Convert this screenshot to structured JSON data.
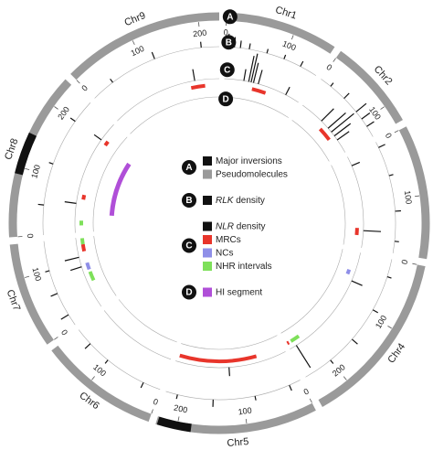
{
  "chart_data": {
    "type": "circos",
    "chromosomes": [
      {
        "name": "Chr1",
        "length": 160,
        "ticks": [
          0,
          100
        ]
      },
      {
        "name": "Chr2",
        "length": 130,
        "ticks": [
          0,
          100
        ]
      },
      {
        "name": null,
        "length": 190,
        "ticks": [
          0,
          100
        ]
      },
      {
        "name": "Chr4",
        "length": 250,
        "ticks": [
          0,
          100,
          200
        ]
      },
      {
        "name": "Chr5",
        "length": 230,
        "ticks": [
          0,
          100,
          200
        ]
      },
      {
        "name": "Chr6",
        "length": 170,
        "ticks": [
          0,
          100
        ]
      },
      {
        "name": "Chr7",
        "length": 150,
        "ticks": [
          0,
          100
        ]
      },
      {
        "name": "Chr8",
        "length": 240,
        "ticks": [
          0,
          100,
          200
        ]
      },
      {
        "name": "Chr9",
        "length": 230,
        "ticks": [
          0,
          100,
          200
        ]
      }
    ],
    "legend": [
      {
        "key": "A",
        "items": [
          {
            "label": "Major inversions",
            "color": "#111111",
            "features": [
              {
                "chr": 7,
                "start": 90,
                "end": 150
              },
              {
                "chr": 4,
                "start": 180,
                "end": 228
              }
            ]
          },
          {
            "label": "Pseudomolecules",
            "color": "#9a9a9a"
          }
        ]
      },
      {
        "key": "B",
        "items": [
          {
            "italic": "RLK",
            "label": " density",
            "color": "#111111",
            "spikes": [
              {
                "chr": 0,
                "pos": 5,
                "value": 0.9
              },
              {
                "chr": 0,
                "pos": 15,
                "value": 0.7
              },
              {
                "chr": 0,
                "pos": 25,
                "value": 0.5
              },
              {
                "chr": 0,
                "pos": 40,
                "value": 0.4
              },
              {
                "chr": 0,
                "pos": 70,
                "value": 0.3
              },
              {
                "chr": 0,
                "pos": 100,
                "value": 0.3
              },
              {
                "chr": 0,
                "pos": 130,
                "value": 0.4
              },
              {
                "chr": 1,
                "pos": 20,
                "value": 0.3
              },
              {
                "chr": 1,
                "pos": 50,
                "value": 0.5
              },
              {
                "chr": 1,
                "pos": 80,
                "value": 0.9
              },
              {
                "chr": 1,
                "pos": 95,
                "value": 0.7
              },
              {
                "chr": 1,
                "pos": 110,
                "value": 0.6
              },
              {
                "chr": 2,
                "pos": 10,
                "value": 0.5
              },
              {
                "chr": 2,
                "pos": 60,
                "value": 0.3
              },
              {
                "chr": 2,
                "pos": 120,
                "value": 0.4
              },
              {
                "chr": 2,
                "pos": 170,
                "value": 0.3
              },
              {
                "chr": 3,
                "pos": 30,
                "value": 0.3
              },
              {
                "chr": 3,
                "pos": 90,
                "value": 0.4
              },
              {
                "chr": 3,
                "pos": 150,
                "value": 0.5
              },
              {
                "chr": 3,
                "pos": 200,
                "value": 0.3
              },
              {
                "chr": 4,
                "pos": 20,
                "value": 0.4
              },
              {
                "chr": 4,
                "pos": 80,
                "value": 0.3
              },
              {
                "chr": 4,
                "pos": 150,
                "value": 0.5
              },
              {
                "chr": 4,
                "pos": 210,
                "value": 0.3
              },
              {
                "chr": 5,
                "pos": 30,
                "value": 0.4
              },
              {
                "chr": 5,
                "pos": 100,
                "value": 0.3
              },
              {
                "chr": 5,
                "pos": 140,
                "value": 0.5
              },
              {
                "chr": 6,
                "pos": 20,
                "value": 0.6
              },
              {
                "chr": 6,
                "pos": 60,
                "value": 0.5
              },
              {
                "chr": 6,
                "pos": 100,
                "value": 0.3
              },
              {
                "chr": 7,
                "pos": 50,
                "value": 0.4
              },
              {
                "chr": 7,
                "pos": 120,
                "value": 0.3
              },
              {
                "chr": 7,
                "pos": 200,
                "value": 0.4
              },
              {
                "chr": 8,
                "pos": 40,
                "value": 0.3
              },
              {
                "chr": 8,
                "pos": 120,
                "value": 0.5
              },
              {
                "chr": 8,
                "pos": 200,
                "value": 0.4
              }
            ]
          }
        ]
      },
      {
        "key": "C",
        "items": [
          {
            "italic": "NLR",
            "label": " density",
            "color": "#111111",
            "spikes": [
              {
                "chr": 0,
                "pos": 40,
                "value": 0.4
              },
              {
                "chr": 0,
                "pos": 50,
                "value": 0.9
              },
              {
                "chr": 0,
                "pos": 55,
                "value": 1
              },
              {
                "chr": 0,
                "pos": 60,
                "value": 0.7
              },
              {
                "chr": 0,
                "pos": 70,
                "value": 0.5
              },
              {
                "chr": 0,
                "pos": 130,
                "value": 0.3
              },
              {
                "chr": 1,
                "pos": 50,
                "value": 0.6
              },
              {
                "chr": 1,
                "pos": 70,
                "value": 0.8
              },
              {
                "chr": 1,
                "pos": 80,
                "value": 1
              },
              {
                "chr": 1,
                "pos": 90,
                "value": 0.7
              },
              {
                "chr": 1,
                "pos": 100,
                "value": 0.5
              },
              {
                "chr": 2,
                "pos": 20,
                "value": 0.3
              },
              {
                "chr": 2,
                "pos": 155,
                "value": 0.6
              },
              {
                "chr": 3,
                "pos": 60,
                "value": 0.4
              },
              {
                "chr": 3,
                "pos": 235,
                "value": 0.9
              },
              {
                "chr": 4,
                "pos": 120,
                "value": 0.3
              },
              {
                "chr": 6,
                "pos": 90,
                "value": 0.4
              },
              {
                "chr": 6,
                "pos": 110,
                "value": 0.5
              },
              {
                "chr": 7,
                "pos": 60,
                "value": 0.4
              },
              {
                "chr": 7,
                "pos": 200,
                "value": 0.3
              },
              {
                "chr": 8,
                "pos": 180,
                "value": 0.4
              }
            ]
          },
          {
            "label": "MRCs",
            "color": "#e8352b",
            "features": [
              {
                "chr": 0,
                "start": 60,
                "end": 90
              },
              {
                "chr": 8,
                "start": 170,
                "end": 200
              },
              {
                "chr": 1,
                "start": 60,
                "end": 90
              },
              {
                "chr": 2,
                "start": 150,
                "end": 165
              },
              {
                "chr": 4,
                "start": 60,
                "end": 225
              },
              {
                "chr": 3,
                "start": 245,
                "end": 249
              },
              {
                "chr": 6,
                "start": 120,
                "end": 135
              },
              {
                "chr": 7,
                "start": 195,
                "end": 205
              },
              {
                "chr": 7,
                "start": 70,
                "end": 80
              }
            ]
          },
          {
            "label": "NCs",
            "color": "#8f8fe8",
            "features": [
              {
                "chr": 3,
                "start": 40,
                "end": 50
              },
              {
                "chr": 6,
                "start": 80,
                "end": 95
              }
            ]
          },
          {
            "label": "NHR intervals",
            "color": "#7ee05a",
            "features": [
              {
                "chr": 3,
                "start": 220,
                "end": 240
              },
              {
                "chr": 7,
                "start": 15,
                "end": 25
              },
              {
                "chr": 6,
                "start": 55,
                "end": 75
              },
              {
                "chr": 6,
                "start": 135,
                "end": 148
              }
            ]
          }
        ]
      },
      {
        "key": "D",
        "items": [
          {
            "label": "HI segment",
            "color": "#b04fd8",
            "features": [
              {
                "chr": 7,
                "start": 40,
                "end": 190
              }
            ]
          }
        ]
      }
    ]
  }
}
